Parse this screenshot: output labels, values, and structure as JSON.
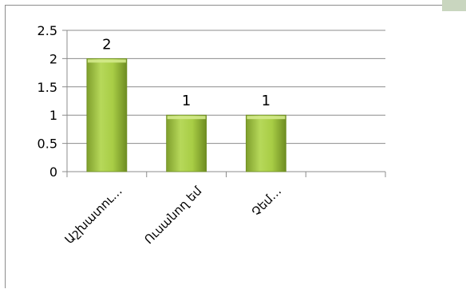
{
  "chart_data": {
    "type": "bar",
    "categories": [
      "Աշխատու…",
      "Ուսանող եմ",
      "Չեմ…",
      ""
    ],
    "values": [
      2,
      1,
      1,
      null
    ],
    "data_labels": [
      "2",
      "1",
      "1",
      ""
    ],
    "title": "",
    "xlabel": "",
    "ylabel": "",
    "ylim": [
      0,
      2.5
    ],
    "yticks": [
      "0",
      "0.5",
      "1",
      "1.5",
      "2",
      "2.5"
    ],
    "grid": true,
    "legend": "none",
    "bar_color": "#9ac43a"
  }
}
